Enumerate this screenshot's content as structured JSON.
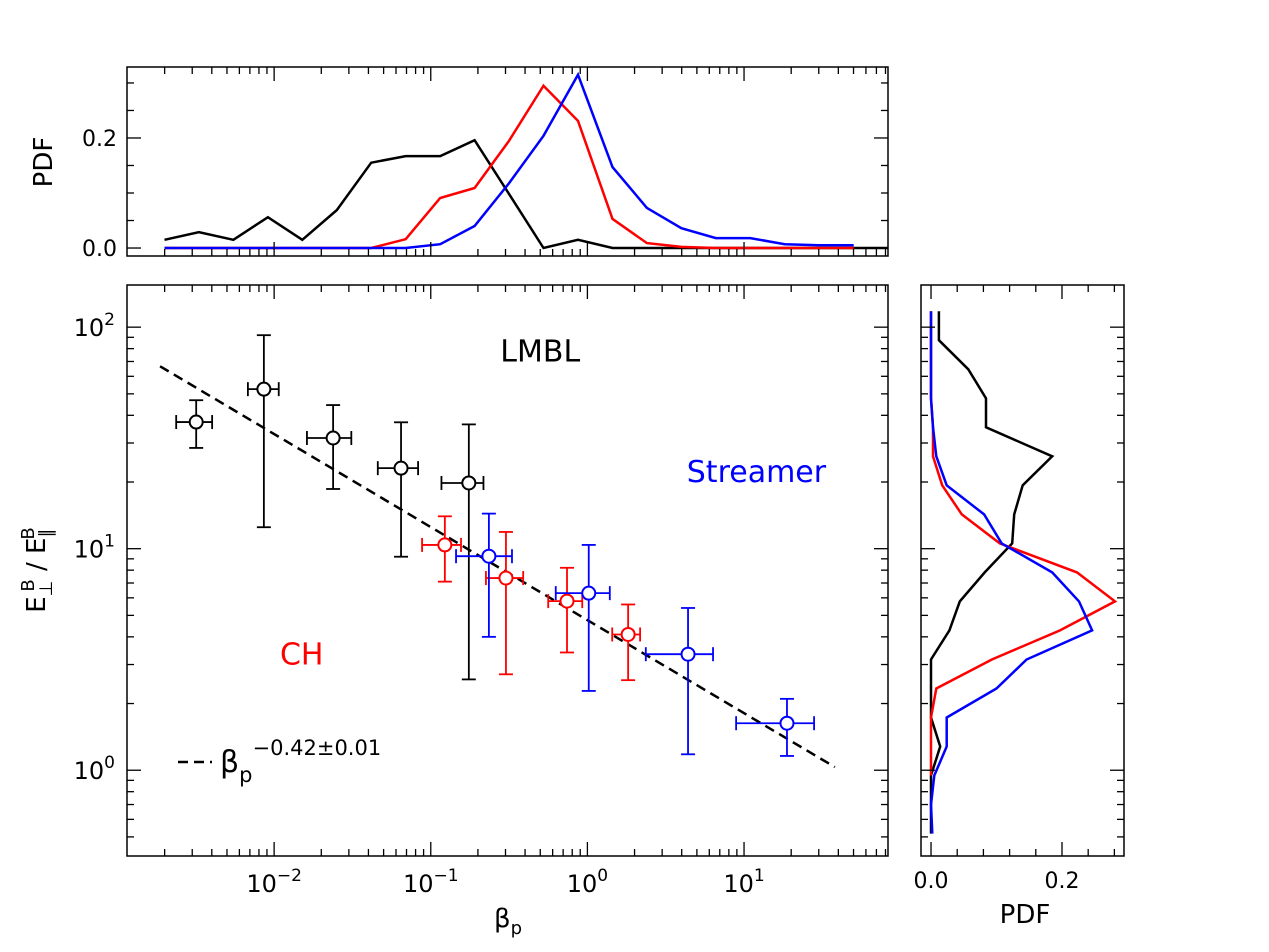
{
  "chart_data": [
    {
      "id": "main",
      "type": "scatter",
      "title": "",
      "xlabel": "β_p",
      "ylabel": "E⊥B / E∥B",
      "xscale": "log",
      "yscale": "log",
      "xlim": [
        0.00115,
        83
      ],
      "ylim": [
        0.41,
        155
      ],
      "xticks": [
        0.01,
        0.1,
        1,
        10
      ],
      "xtick_labels": [
        {
          "base": "10",
          "exp": "−2"
        },
        {
          "base": "10",
          "exp": "−1"
        },
        {
          "base": "10",
          "exp": "0"
        },
        {
          "base": "10",
          "exp": "1"
        }
      ],
      "yticks": [
        1,
        10,
        100
      ],
      "ytick_labels": [
        {
          "base": "10",
          "exp": "0"
        },
        {
          "base": "10",
          "exp": "1"
        },
        {
          "base": "10",
          "exp": "2"
        }
      ],
      "grid": false,
      "series": [
        {
          "name": "LMBL",
          "color": "#000000",
          "points": [
            {
              "x": 0.00318,
              "y": 37.3,
              "xlo": 0.00237,
              "xhi": 0.00402,
              "ylo": 28.5,
              "yhi": 46.8
            },
            {
              "x": 0.0086,
              "y": 52.5,
              "xlo": 0.0068,
              "xhi": 0.0107,
              "ylo": 12.5,
              "yhi": 92.0
            },
            {
              "x": 0.0238,
              "y": 31.6,
              "xlo": 0.0162,
              "xhi": 0.0311,
              "ylo": 18.6,
              "yhi": 44.5
            },
            {
              "x": 0.0646,
              "y": 23.1,
              "xlo": 0.0459,
              "xhi": 0.083,
              "ylo": 9.2,
              "yhi": 37.2
            },
            {
              "x": 0.175,
              "y": 19.8,
              "xlo": 0.117,
              "xhi": 0.217,
              "ylo": 2.57,
              "yhi": 36.4
            }
          ]
        },
        {
          "name": "CH",
          "color": "#ff0000",
          "points": [
            {
              "x": 0.123,
              "y": 10.4,
              "xlo": 0.088,
              "xhi": 0.156,
              "ylo": 7.1,
              "yhi": 14.0
            },
            {
              "x": 0.302,
              "y": 7.37,
              "xlo": 0.225,
              "xhi": 0.389,
              "ylo": 2.71,
              "yhi": 11.9
            },
            {
              "x": 0.741,
              "y": 5.8,
              "xlo": 0.562,
              "xhi": 0.927,
              "ylo": 3.4,
              "yhi": 8.2
            },
            {
              "x": 1.82,
              "y": 4.1,
              "xlo": 1.44,
              "xhi": 2.17,
              "ylo": 2.55,
              "yhi": 5.6
            }
          ]
        },
        {
          "name": "Streamer",
          "color": "#0000ff",
          "points": [
            {
              "x": 0.235,
              "y": 9.25,
              "xlo": 0.145,
              "xhi": 0.33,
              "ylo": 4.0,
              "yhi": 14.4
            },
            {
              "x": 1.02,
              "y": 6.3,
              "xlo": 0.628,
              "xhi": 1.39,
              "ylo": 2.28,
              "yhi": 10.4
            },
            {
              "x": 4.39,
              "y": 3.34,
              "xlo": 2.36,
              "xhi": 6.34,
              "ylo": 1.18,
              "yhi": 5.4
            },
            {
              "x": 18.8,
              "y": 1.63,
              "xlo": 8.9,
              "xhi": 28.0,
              "ylo": 1.16,
              "yhi": 2.1
            }
          ]
        }
      ],
      "fit": {
        "type": "powerlaw",
        "amplitude": 4.76,
        "exponent": -0.42,
        "x_range": [
          0.00187,
          38.0
        ],
        "color": "#000000",
        "style": "dashed",
        "legend": {
          "base": "β",
          "sub": "p",
          "sup": "−0.42±0.01"
        }
      },
      "annotations": [
        {
          "text": "LMBL",
          "color": "#000000",
          "x": 0.5,
          "y": 70
        },
        {
          "text": "Streamer",
          "color": "#0000ff",
          "x": 12,
          "y": 20
        },
        {
          "text": "CH",
          "color": "#ff0000",
          "x": 0.015,
          "y": 3.0
        }
      ]
    },
    {
      "id": "top-pdf",
      "type": "line",
      "xlabel": "",
      "ylabel": "PDF",
      "xscale": "log",
      "xlim": [
        0.00115,
        83
      ],
      "ylim": [
        -0.0145,
        0.329
      ],
      "yticks": [
        0.0,
        0.2
      ],
      "ytick_labels": [
        "0.0",
        "0.2"
      ],
      "x_log_start": -2.7,
      "x_log_step": 0.22,
      "series": [
        {
          "name": "LMBL",
          "color": "#000000",
          "values": [
            0.015,
            0.029,
            0.015,
            0.056,
            0.015,
            0.069,
            0.155,
            0.167,
            0.167,
            0.196,
            0.098,
            0.0,
            0.015,
            0.0,
            0.0,
            0.0,
            0.0,
            0.0,
            0.0,
            0.0,
            0.0,
            0.0
          ]
        },
        {
          "name": "CH",
          "color": "#ff0000",
          "values": [
            0.0,
            0.0,
            0.0,
            0.0,
            0.0,
            0.0,
            0.0,
            0.016,
            0.091,
            0.109,
            0.195,
            0.295,
            0.231,
            0.053,
            0.009,
            0.002,
            0.0,
            0.0,
            0.0,
            0.0,
            0.0
          ]
        },
        {
          "name": "Streamer",
          "color": "#0000ff",
          "values": [
            0.0,
            0.0,
            0.0,
            0.0,
            0.0,
            0.0,
            0.0,
            0.0,
            0.007,
            0.04,
            0.118,
            0.204,
            0.315,
            0.147,
            0.073,
            0.036,
            0.018,
            0.018,
            0.007,
            0.005,
            0.005
          ]
        }
      ]
    },
    {
      "id": "right-pdf",
      "type": "line",
      "xlabel": "PDF",
      "ylabel": "",
      "yscale": "log",
      "xlim": [
        -0.0153,
        0.2947
      ],
      "ylim": [
        0.41,
        155
      ],
      "xticks": [
        0.0,
        0.2
      ],
      "xtick_labels": [
        "0.0",
        "0.2"
      ],
      "y_log_start": 2.072,
      "y_log_step": -0.131,
      "series": [
        {
          "name": "LMBL",
          "color": "#000000",
          "values": [
            0.012,
            0.012,
            0.057,
            0.084,
            0.084,
            0.185,
            0.14,
            0.127,
            0.124,
            0.082,
            0.044,
            0.028,
            0.0,
            0.0,
            0.0,
            0.014,
            0.0,
            0.0,
            0.0
          ]
        },
        {
          "name": "CH",
          "color": "#ff0000",
          "values": [
            0.0,
            0.0,
            0.0,
            0.0,
            0.003,
            0.003,
            0.017,
            0.047,
            0.105,
            0.223,
            0.281,
            0.197,
            0.093,
            0.008,
            0.0,
            0.0,
            0.0
          ]
        },
        {
          "name": "Streamer",
          "color": "#0000ff",
          "values": [
            0.0,
            0.0,
            0.0,
            0.0,
            0.003,
            0.008,
            0.024,
            0.081,
            0.108,
            0.185,
            0.226,
            0.246,
            0.146,
            0.1,
            0.024,
            0.024,
            0.005,
            0.0,
            0.002
          ]
        }
      ]
    }
  ]
}
